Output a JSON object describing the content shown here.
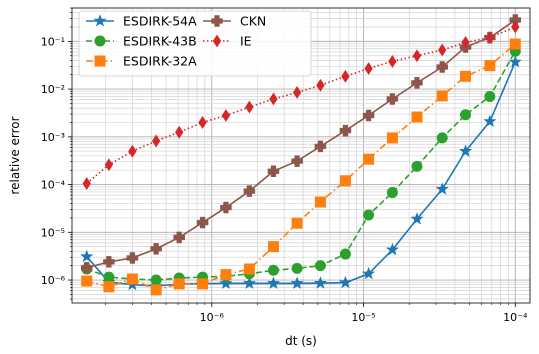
{
  "chart_data": {
    "type": "line",
    "xlabel": "dt (s)",
    "ylabel": "relative error",
    "xscale": "log",
    "yscale": "log",
    "xlim": [
      1.2e-07,
      0.000125
    ],
    "ylim": [
      3.3e-07,
      0.5
    ],
    "grid": true,
    "legend_position": "top-left",
    "x_ticks": [
      {
        "value": 1e-06,
        "label": "10⁻⁶"
      },
      {
        "value": 1e-05,
        "label": "10⁻⁵"
      },
      {
        "value": 0.0001,
        "label": "10⁻⁴"
      }
    ],
    "y_ticks": [
      {
        "value": 1e-06,
        "label": "10⁻⁶"
      },
      {
        "value": 1e-05,
        "label": "10⁻⁵"
      },
      {
        "value": 0.0001,
        "label": "10⁻⁴"
      },
      {
        "value": 0.001,
        "label": "10⁻³"
      },
      {
        "value": 0.01,
        "label": "10⁻²"
      },
      {
        "value": 0.1,
        "label": "10⁻¹"
      }
    ],
    "x": [
      1.5e-07,
      2.1e-07,
      3e-07,
      4.3e-07,
      6.1e-07,
      8.7e-07,
      1.24e-06,
      1.77e-06,
      2.55e-06,
      3.65e-06,
      5.2e-06,
      7.6e-06,
      1.08e-05,
      1.55e-05,
      2.25e-05,
      3.3e-05,
      4.7e-05,
      6.8e-05,
      0.0001
    ],
    "series": [
      {
        "name": "ESDIRK-54A",
        "color": "#1f77b4",
        "marker": "star",
        "linestyle": "solid",
        "values": [
          3.1e-06,
          9e-07,
          8e-07,
          7.5e-07,
          8.2e-07,
          8.4e-07,
          8.5e-07,
          8.5e-07,
          8.5e-07,
          8.5e-07,
          8.6e-07,
          8.8e-07,
          1.35e-06,
          4.3e-06,
          1.9e-05,
          8e-05,
          0.0005,
          0.0021,
          0.037
        ]
      },
      {
        "name": "ESDIRK-43B",
        "color": "#2ca02c",
        "marker": "circle",
        "linestyle": "dashed",
        "values": [
          1.7e-06,
          1.15e-06,
          1.05e-06,
          1e-06,
          1.1e-06,
          1.15e-06,
          1.2e-06,
          1.35e-06,
          1.6e-06,
          1.75e-06,
          2e-06,
          3.5e-06,
          2.3e-05,
          6.8e-05,
          0.00024,
          0.00095,
          0.0029,
          0.007,
          0.062
        ]
      },
      {
        "name": "ESDIRK-32A",
        "color": "#ff7f0e",
        "marker": "square",
        "linestyle": "dashdot",
        "values": [
          9.5e-07,
          7.2e-07,
          1.05e-06,
          6.2e-07,
          8.3e-07,
          8.3e-07,
          1.3e-06,
          1.7e-06,
          5e-06,
          1.55e-05,
          4.3e-05,
          0.00012,
          0.00034,
          0.00095,
          0.0026,
          0.0072,
          0.0185,
          0.031,
          0.088
        ]
      },
      {
        "name": "CKN",
        "color": "#8c564b",
        "marker": "plus",
        "linestyle": "solid",
        "values": [
          1.8e-06,
          2.4e-06,
          2.9e-06,
          4.5e-06,
          7.8e-06,
          1.6e-05,
          3.3e-05,
          7.3e-05,
          0.00019,
          0.00031,
          0.00063,
          0.00135,
          0.0028,
          0.0062,
          0.0135,
          0.029,
          0.076,
          0.12,
          0.28
        ]
      },
      {
        "name": "IE",
        "color": "#d62728",
        "marker": "diamond",
        "linestyle": "dotted",
        "values": [
          0.000105,
          0.00026,
          0.0005,
          0.00082,
          0.00125,
          0.002,
          0.0028,
          0.0042,
          0.0062,
          0.0085,
          0.012,
          0.0185,
          0.027,
          0.038,
          0.05,
          0.066,
          0.095,
          0.12,
          0.2
        ]
      }
    ]
  }
}
